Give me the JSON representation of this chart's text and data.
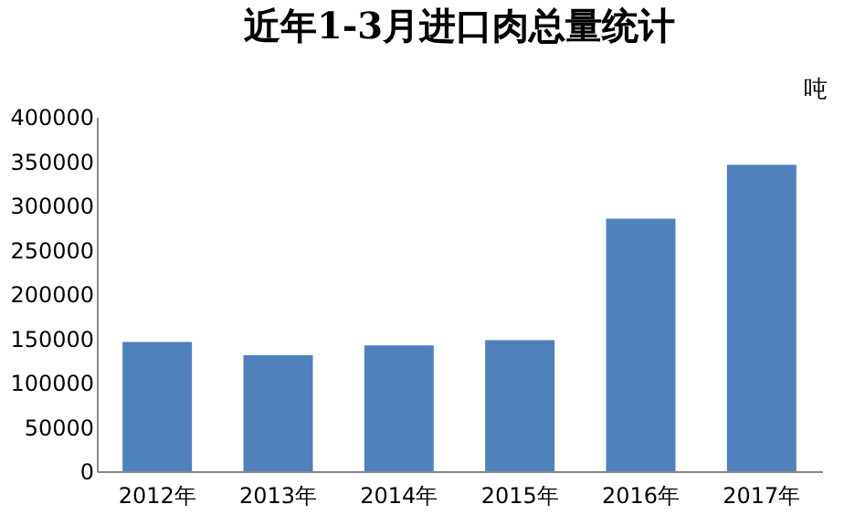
{
  "chart_data": {
    "type": "bar",
    "title": "近年1-3月进口肉总量统计",
    "categories": [
      "2012年",
      "2013年",
      "2014年",
      "2015年",
      "2016年",
      "2017年"
    ],
    "values": [
      146000,
      131000,
      142000,
      148000,
      285000,
      346000
    ],
    "color": "#4f81bd",
    "ylim": [
      0,
      400000
    ],
    "yticks": [
      0,
      50000,
      100000,
      150000,
      200000,
      250000,
      300000,
      350000,
      400000
    ],
    "grid": false,
    "annotations": [
      "吨"
    ]
  }
}
